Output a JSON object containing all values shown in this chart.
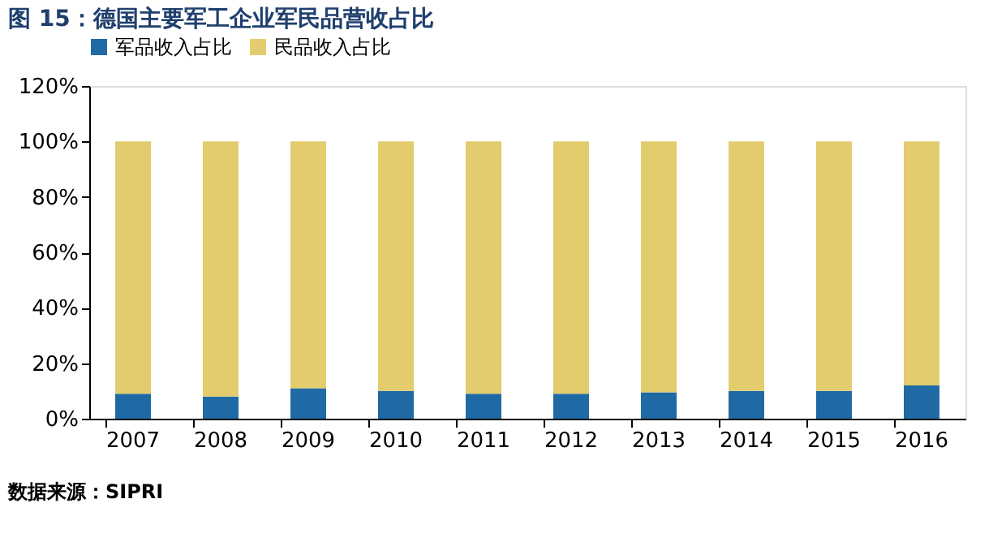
{
  "chart_data": {
    "type": "bar",
    "stacked": true,
    "title": "图 15：德国主要军工企业军民品营收占比",
    "categories": [
      "2007",
      "2008",
      "2009",
      "2010",
      "2011",
      "2012",
      "2013",
      "2014",
      "2015",
      "2016"
    ],
    "series": [
      {
        "name": "军品收入占比",
        "color": "#1f6aa5",
        "values": [
          9,
          8,
          11,
          10,
          9,
          9,
          9.5,
          10,
          10,
          12
        ]
      },
      {
        "name": "民品收入占比",
        "color": "#e3cc6e",
        "values": [
          91,
          92,
          89,
          90,
          91,
          91,
          90.5,
          90,
          90,
          88
        ]
      }
    ],
    "ylim": [
      0,
      120
    ],
    "yticks": [
      {
        "value": 0,
        "label": "0%"
      },
      {
        "value": 20,
        "label": "20%"
      },
      {
        "value": 40,
        "label": "40%"
      },
      {
        "value": 60,
        "label": "60%"
      },
      {
        "value": 80,
        "label": "80%"
      },
      {
        "value": 100,
        "label": "100%"
      },
      {
        "value": 120,
        "label": "120%"
      }
    ],
    "grid": false,
    "legend": "top",
    "annotations": [
      "数据来源：SIPRI"
    ]
  }
}
